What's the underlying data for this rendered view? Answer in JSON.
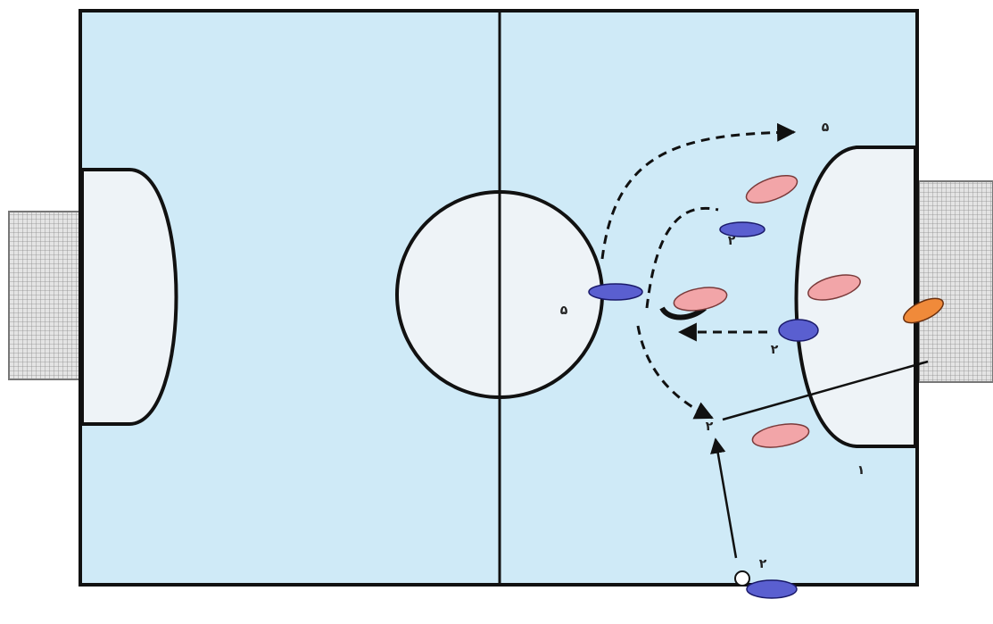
{
  "labels": [
    {
      "text": "۵"
    },
    {
      "text": "۵"
    },
    {
      "text": "۲"
    },
    {
      "text": "۲"
    },
    {
      "text": "۲"
    },
    {
      "text": "۲"
    },
    {
      "text": "۱"
    }
  ]
}
